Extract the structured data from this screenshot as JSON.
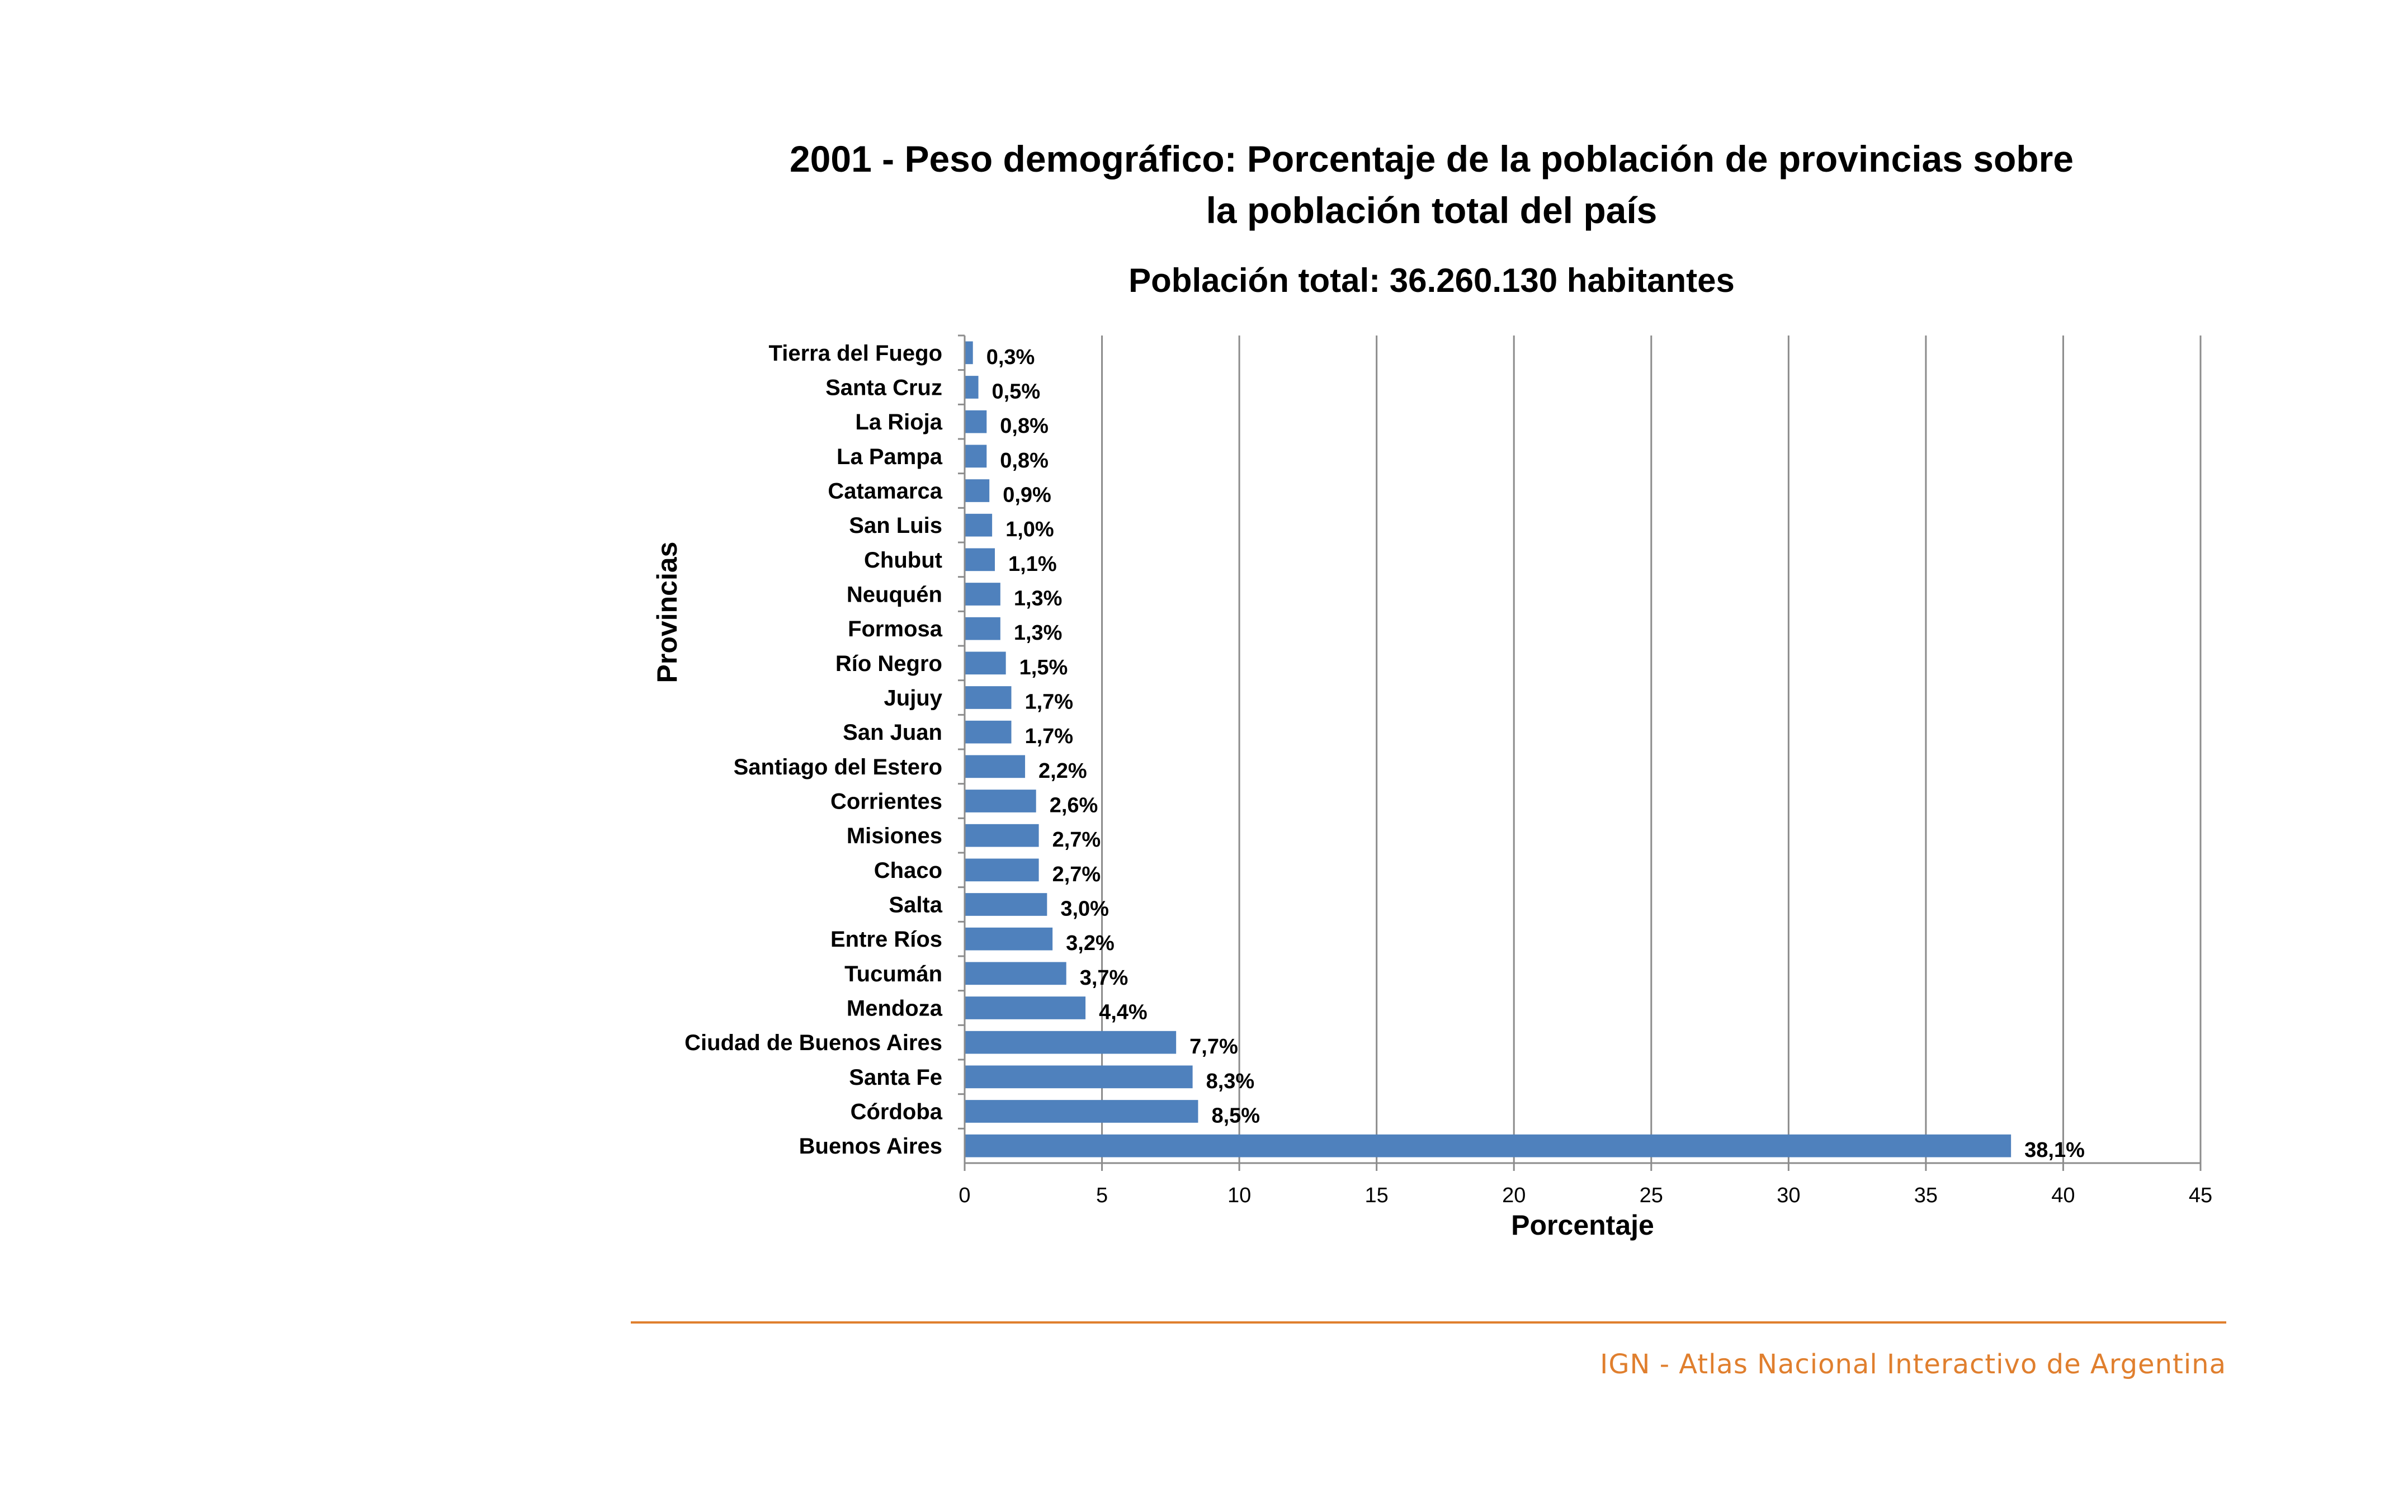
{
  "chart_data": {
    "type": "bar",
    "orientation": "horizontal",
    "title_line1": "2001 - Peso demográfico: Porcentaje de la población de provincias sobre",
    "title_line2": "la población total del país",
    "subtitle": "Población total: 36.260.130 habitantes",
    "xlabel": "Porcentaje",
    "ylabel": "Provincias",
    "xlim": [
      0,
      45
    ],
    "xticks": [
      0,
      5,
      10,
      15,
      20,
      25,
      30,
      35,
      40,
      45
    ],
    "grid": "vertical",
    "bar_color": "#4f81bd",
    "categories": [
      "Tierra del Fuego",
      "Santa Cruz",
      "La Rioja",
      "La Pampa",
      "Catamarca",
      "San Luis",
      "Chubut",
      "Neuquén",
      "Formosa",
      "Río Negro",
      "Jujuy",
      "San Juan",
      "Santiago del Estero",
      "Corrientes",
      "Misiones",
      "Chaco",
      "Salta",
      "Entre Ríos",
      "Tucumán",
      "Mendoza",
      "Ciudad de Buenos Aires",
      "Santa Fe",
      "Córdoba",
      "Buenos Aires"
    ],
    "values": [
      0.3,
      0.5,
      0.8,
      0.8,
      0.9,
      1.0,
      1.1,
      1.3,
      1.3,
      1.5,
      1.7,
      1.7,
      2.2,
      2.6,
      2.7,
      2.7,
      3.0,
      3.2,
      3.7,
      4.4,
      7.7,
      8.3,
      8.5,
      38.1
    ],
    "data_labels": [
      "0,3%",
      "0,5%",
      "0,8%",
      "0,8%",
      "0,9%",
      "1,0%",
      "1,1%",
      "1,3%",
      "1,3%",
      "1,5%",
      "1,7%",
      "1,7%",
      "2,2%",
      "2,6%",
      "2,7%",
      "2,7%",
      "3,0%",
      "3,2%",
      "3,7%",
      "4,4%",
      "7,7%",
      "8,3%",
      "8,5%",
      "38,1%"
    ]
  },
  "footer": {
    "text": "IGN - Atlas Nacional Interactivo de Argentina",
    "color": "#e07f2e"
  }
}
